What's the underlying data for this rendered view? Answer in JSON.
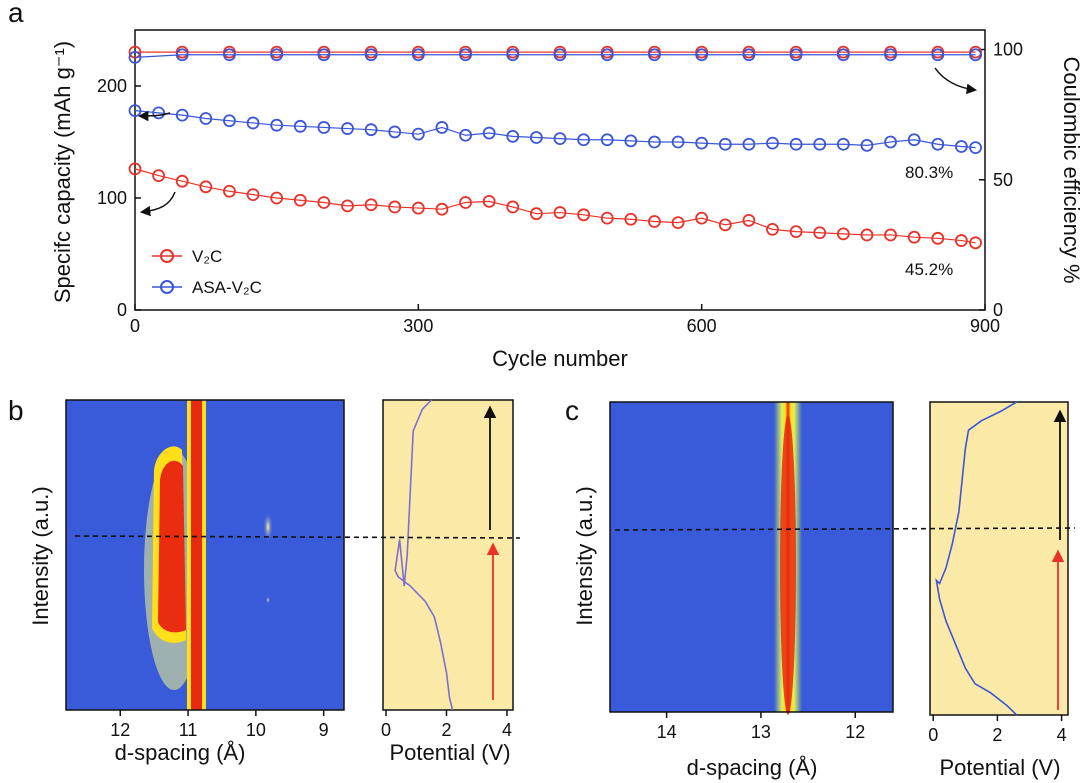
{
  "panels": {
    "a": {
      "label": "a"
    },
    "b": {
      "label": "b"
    },
    "c": {
      "label": "c"
    }
  },
  "chart_data": [
    {
      "type": "scatter",
      "panel": "a",
      "xlabel": "Cycle number",
      "ylabel": "Specifc capacity (mAh g⁻¹)",
      "ylabel_right": "Coulombic efficiency %",
      "xlim": [
        0,
        900
      ],
      "ylim": [
        0,
        250
      ],
      "ylim_right": [
        0,
        107.5
      ],
      "xticks": [
        "0",
        "300",
        "600",
        "900"
      ],
      "yticks": [
        "0",
        "100",
        "200"
      ],
      "yticks_right": [
        "0",
        "50",
        "100"
      ],
      "legend": [
        {
          "label": "V₂C",
          "color": "#e8322a"
        },
        {
          "label": "ASA-V₂C",
          "color": "#3b56d6"
        }
      ],
      "legend_position": "lower-left",
      "annotations": [
        "80.3%",
        "45.2%"
      ],
      "series": [
        {
          "name": "V₂C",
          "axis": "left",
          "color": "#e8322a",
          "x": [
            0,
            25,
            50,
            75,
            100,
            125,
            150,
            175,
            200,
            225,
            250,
            275,
            300,
            325,
            350,
            375,
            400,
            425,
            450,
            475,
            500,
            525,
            550,
            575,
            600,
            625,
            650,
            675,
            700,
            725,
            750,
            775,
            800,
            825,
            850,
            875,
            890
          ],
          "y": [
            126,
            120,
            115,
            110,
            106,
            103,
            100,
            98,
            96,
            93,
            94,
            92,
            91,
            90,
            96,
            97,
            92,
            86,
            87,
            85,
            82,
            81,
            79,
            78,
            82,
            76,
            80,
            72,
            70,
            69,
            68,
            67,
            67,
            65,
            64,
            62,
            60
          ]
        },
        {
          "name": "ASA-V₂C",
          "axis": "left",
          "color": "#3b56d6",
          "x": [
            0,
            25,
            50,
            75,
            100,
            125,
            150,
            175,
            200,
            225,
            250,
            275,
            300,
            325,
            350,
            375,
            400,
            425,
            450,
            475,
            500,
            525,
            550,
            575,
            600,
            625,
            650,
            675,
            700,
            725,
            750,
            775,
            800,
            825,
            850,
            875,
            890
          ],
          "y": [
            178,
            176,
            174,
            171,
            169,
            167,
            165,
            164,
            163,
            162,
            161,
            159,
            157,
            163,
            156,
            158,
            155,
            154,
            153,
            152,
            152,
            151,
            150,
            150,
            149,
            148,
            148,
            149,
            148,
            148,
            148,
            147,
            150,
            152,
            148,
            146,
            145
          ]
        },
        {
          "name": "V₂C CE",
          "axis": "right",
          "color": "#e8322a",
          "x": [
            0,
            50,
            100,
            150,
            200,
            250,
            300,
            350,
            400,
            450,
            500,
            550,
            600,
            650,
            700,
            750,
            800,
            850,
            890
          ],
          "y": [
            99,
            99,
            99,
            99,
            99,
            99,
            99,
            99,
            99,
            99,
            99,
            99,
            99,
            99,
            99,
            99,
            99,
            99,
            99
          ]
        },
        {
          "name": "ASA-V₂C CE",
          "axis": "right",
          "color": "#3b56d6",
          "x": [
            0,
            50,
            100,
            150,
            200,
            250,
            300,
            350,
            400,
            450,
            500,
            550,
            600,
            650,
            700,
            750,
            800,
            850,
            890
          ],
          "y": [
            97,
            98,
            98,
            98,
            98,
            98,
            98,
            98,
            98,
            98,
            98,
            98,
            98,
            98,
            98,
            98,
            98,
            98,
            98
          ]
        }
      ]
    },
    {
      "type": "heatmap",
      "panel": "b",
      "xlabel": "d-spacing (Å)",
      "ylabel": "Intensity (a.u.)",
      "xlim": [
        12.8,
        8.7
      ],
      "xticks": [
        "12",
        "11",
        "10",
        "9"
      ]
    },
    {
      "type": "line",
      "panel": "b",
      "xlabel": "Potential (V)",
      "xlim": [
        -0.1,
        4.2
      ],
      "xticks": [
        "0",
        "2",
        "4"
      ],
      "series": [
        {
          "x": [
            1.5,
            1.2,
            0.9,
            0.85,
            0.8,
            0.75,
            0.7,
            0.6,
            0.45,
            0.3,
            0.4,
            0.8,
            1.3,
            1.6,
            1.8,
            2.0,
            2.1,
            2.2
          ],
          "y": [
            1.0,
            0.97,
            0.9,
            0.8,
            0.7,
            0.6,
            0.5,
            0.4,
            0.55,
            0.45,
            0.43,
            0.4,
            0.35,
            0.3,
            0.22,
            0.12,
            0.04,
            0.0
          ]
        }
      ]
    },
    {
      "type": "heatmap",
      "panel": "c",
      "xlabel": "d-spacing (Å)",
      "ylabel": "Intensity (a.u.)",
      "xlim": [
        14.6,
        11.6
      ],
      "xticks": [
        "14",
        "13",
        "12"
      ]
    },
    {
      "type": "line",
      "panel": "c",
      "xlabel": "Potential (V)",
      "xlim": [
        -0.1,
        4.2
      ],
      "xticks": [
        "0",
        "2",
        "4"
      ],
      "series": [
        {
          "x": [
            2.6,
            2.1,
            1.5,
            1.1,
            1.0,
            0.9,
            0.8,
            0.6,
            0.4,
            0.2,
            0.1,
            0.2,
            0.4,
            0.6,
            0.8,
            1.0,
            1.3,
            1.8,
            2.3,
            2.6
          ],
          "y": [
            1.0,
            0.97,
            0.94,
            0.91,
            0.85,
            0.75,
            0.65,
            0.55,
            0.47,
            0.42,
            0.43,
            0.37,
            0.3,
            0.25,
            0.2,
            0.15,
            0.1,
            0.07,
            0.03,
            0.0
          ]
        }
      ]
    }
  ]
}
